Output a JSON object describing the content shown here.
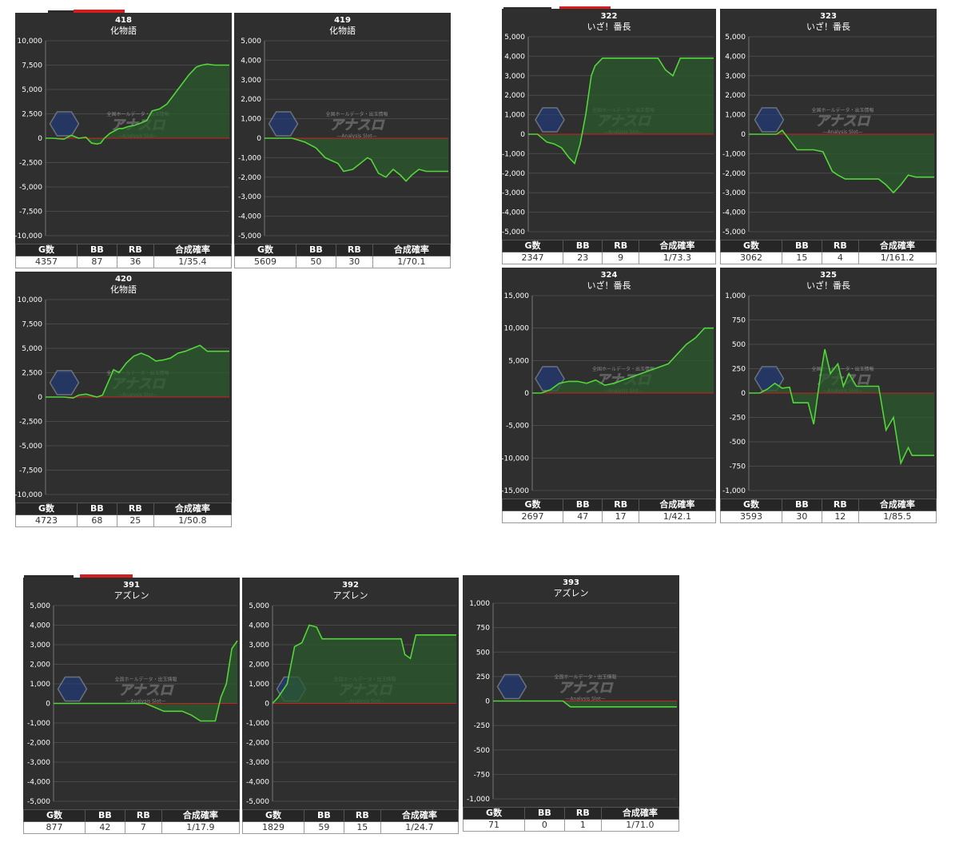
{
  "table_headers": {
    "g": "G数",
    "bb": "BB",
    "rb": "RB",
    "prob": "合成確率"
  },
  "colors": {
    "panel": "#2f2f2f",
    "line": "#53d63a",
    "fill": "#2b5a2d",
    "zero_line": "#d21e1e",
    "grid": "#4a4a4a"
  },
  "watermark": {
    "title": "アナスロ",
    "subtitle": "—Analysis Slot—",
    "tagline": "全国ホールデータ・出玉情報",
    "icon": "hexagon-logo-icon"
  },
  "chart_data": [
    {
      "type": "area",
      "number": "418",
      "title": "化物語",
      "ylim": [
        -10000,
        10000
      ],
      "yticks": [
        "10,000",
        "7,500",
        "5,000",
        "2,500",
        "0",
        "-2,500",
        "-5,000",
        "-7,500",
        "-10,000"
      ],
      "x": [
        0,
        4,
        10,
        14,
        18,
        22,
        25,
        28,
        30,
        32,
        35,
        40,
        42,
        45,
        48,
        51,
        55,
        58,
        62,
        66,
        70,
        74,
        78,
        82,
        85,
        88,
        92,
        96,
        100
      ],
      "y": [
        0,
        0,
        -100,
        300,
        0,
        100,
        -500,
        -600,
        -500,
        0,
        500,
        1000,
        1000,
        1200,
        1300,
        1500,
        1800,
        2800,
        3000,
        3500,
        4500,
        5500,
        6500,
        7300,
        7500,
        7600,
        7500,
        7500,
        7500
      ],
      "stats": {
        "g": "4357",
        "bb": "87",
        "rb": "36",
        "prob": "1/35.4"
      }
    },
    {
      "type": "area",
      "number": "419",
      "title": "化物語",
      "ylim": [
        -5000,
        5000
      ],
      "yticks": [
        "5,000",
        "4,000",
        "3,000",
        "2,000",
        "1,000",
        "0",
        "-1,000",
        "-2,000",
        "-3,000",
        "-4,000",
        "-5,000"
      ],
      "x": [
        0,
        15,
        22,
        28,
        33,
        40,
        43,
        48,
        52,
        56,
        58,
        62,
        66,
        70,
        74,
        77,
        80,
        84,
        88,
        92,
        96,
        100
      ],
      "y": [
        0,
        0,
        -200,
        -500,
        -1000,
        -1300,
        -1700,
        -1600,
        -1300,
        -1000,
        -1100,
        -1800,
        -2000,
        -1600,
        -1900,
        -2200,
        -1900,
        -1600,
        -1700,
        -1700,
        -1700,
        -1700
      ],
      "stats": {
        "g": "5609",
        "bb": "50",
        "rb": "30",
        "prob": "1/70.1"
      }
    },
    {
      "type": "area",
      "number": "420",
      "title": "化物語",
      "ylim": [
        -10000,
        10000
      ],
      "yticks": [
        "10,000",
        "7,500",
        "5,000",
        "2,500",
        "0",
        "-2,500",
        "-5,000",
        "-7,500",
        "-10,000"
      ],
      "x": [
        0,
        10,
        15,
        18,
        22,
        28,
        31,
        34,
        37,
        40,
        44,
        48,
        52,
        56,
        60,
        64,
        68,
        72,
        76,
        80,
        84,
        88,
        92,
        96,
        100
      ],
      "y": [
        0,
        0,
        -100,
        200,
        300,
        0,
        200,
        1500,
        2800,
        2500,
        3500,
        4200,
        4500,
        4200,
        3700,
        3800,
        4000,
        4500,
        4700,
        5000,
        5300,
        4700,
        4700,
        4700,
        4700
      ],
      "stats": {
        "g": "4723",
        "bb": "68",
        "rb": "25",
        "prob": "1/50.8"
      }
    },
    {
      "type": "area",
      "number": "322",
      "title": "いざ！番長",
      "ylim": [
        -5000,
        5000
      ],
      "yticks": [
        "5,000",
        "4,000",
        "3,000",
        "2,000",
        "1,000",
        "0",
        "-1,000",
        "-2,000",
        "-3,000",
        "-4,000",
        "-5,000"
      ],
      "x": [
        0,
        5,
        10,
        14,
        18,
        22,
        25,
        28,
        31,
        34,
        36,
        40,
        45,
        55,
        65,
        70,
        74,
        78,
        82,
        100
      ],
      "y": [
        0,
        0,
        -400,
        -500,
        -700,
        -1200,
        -1500,
        -500,
        1000,
        3000,
        3500,
        3900,
        3900,
        3900,
        3900,
        3900,
        3300,
        3000,
        3900,
        3900
      ],
      "stats": {
        "g": "2347",
        "bb": "23",
        "rb": "9",
        "prob": "1/73.3"
      }
    },
    {
      "type": "area",
      "number": "323",
      "title": "いざ！番長",
      "ylim": [
        -5000,
        5000
      ],
      "yticks": [
        "5,000",
        "4,000",
        "3,000",
        "2,000",
        "1,000",
        "0",
        "-1,000",
        "-2,000",
        "-3,000",
        "-4,000",
        "-5,000"
      ],
      "x": [
        0,
        15,
        18,
        22,
        26,
        30,
        35,
        40,
        45,
        48,
        52,
        56,
        60,
        65,
        70,
        74,
        78,
        82,
        86,
        90,
        94,
        100
      ],
      "y": [
        0,
        0,
        200,
        -300,
        -800,
        -800,
        -800,
        -900,
        -1900,
        -2100,
        -2300,
        -2300,
        -2300,
        -2300,
        -2300,
        -2600,
        -3000,
        -2600,
        -2100,
        -2200,
        -2200,
        -2200
      ],
      "stats": {
        "g": "3062",
        "bb": "15",
        "rb": "4",
        "prob": "1/161.2"
      }
    },
    {
      "type": "area",
      "number": "324",
      "title": "いざ！番長",
      "ylim": [
        -15000,
        15000
      ],
      "yticks": [
        "15,000",
        "10,000",
        "5,000",
        "0",
        "-5,000",
        "-10,000",
        "-15,000"
      ],
      "x": [
        0,
        5,
        10,
        15,
        20,
        25,
        30,
        35,
        40,
        45,
        50,
        55,
        60,
        65,
        70,
        75,
        80,
        85,
        90,
        95,
        100
      ],
      "y": [
        0,
        0,
        500,
        1500,
        1800,
        1800,
        1500,
        2000,
        1200,
        1500,
        2000,
        2500,
        3000,
        3500,
        4000,
        4500,
        6000,
        7500,
        8500,
        10000,
        10000
      ],
      "stats": {
        "g": "2697",
        "bb": "47",
        "rb": "17",
        "prob": "1/42.1"
      }
    },
    {
      "type": "area",
      "number": "325",
      "title": "いざ！番長",
      "ylim": [
        -1000,
        1000
      ],
      "yticks": [
        "1,000",
        "750",
        "500",
        "250",
        "0",
        "-250",
        "-500",
        "-750",
        "-1,000"
      ],
      "x": [
        0,
        6,
        10,
        14,
        18,
        22,
        24,
        28,
        32,
        35,
        38,
        41,
        44,
        48,
        51,
        54,
        58,
        62,
        66,
        70,
        74,
        78,
        82,
        86,
        88,
        90,
        92,
        94,
        96,
        100
      ],
      "y": [
        0,
        0,
        40,
        100,
        50,
        60,
        -100,
        -100,
        -100,
        -320,
        100,
        450,
        200,
        300,
        70,
        200,
        70,
        70,
        70,
        70,
        -380,
        -250,
        -720,
        -560,
        -640,
        -640,
        -640,
        -640,
        -640,
        -640
      ],
      "stats": {
        "g": "3593",
        "bb": "30",
        "rb": "12",
        "prob": "1/85.5"
      }
    },
    {
      "type": "area",
      "number": "391",
      "title": "アズレン",
      "ylim": [
        -5000,
        5000
      ],
      "yticks": [
        "5,000",
        "4,000",
        "3,000",
        "2,000",
        "1,000",
        "0",
        "-1,000",
        "-2,000",
        "-3,000",
        "-4,000",
        "-5,000"
      ],
      "x": [
        0,
        30,
        50,
        55,
        60,
        65,
        70,
        75,
        80,
        85,
        88,
        91,
        94,
        97,
        100
      ],
      "y": [
        0,
        0,
        0,
        -200,
        -400,
        -400,
        -400,
        -600,
        -900,
        -900,
        -900,
        300,
        1000,
        2800,
        3200
      ],
      "stats": {
        "g": "877",
        "bb": "42",
        "rb": "7",
        "prob": "1/17.9"
      }
    },
    {
      "type": "area",
      "number": "392",
      "title": "アズレン",
      "ylim": [
        -5000,
        5000
      ],
      "yticks": [
        "5,000",
        "4,000",
        "3,000",
        "2,000",
        "1,000",
        "0",
        "-1,000",
        "-2,000",
        "-3,000",
        "-4,000",
        "-5,000"
      ],
      "x": [
        0,
        3,
        8,
        12,
        16,
        20,
        24,
        27,
        30,
        35,
        40,
        45,
        50,
        55,
        60,
        65,
        70,
        72,
        75,
        78,
        82,
        86,
        90,
        95,
        100
      ],
      "y": [
        0,
        300,
        1000,
        2900,
        3100,
        4000,
        3900,
        3300,
        3300,
        3300,
        3300,
        3300,
        3300,
        3300,
        3300,
        3300,
        3300,
        2500,
        2300,
        3500,
        3500,
        3500,
        3500,
        3500,
        3500
      ],
      "stats": {
        "g": "1829",
        "bb": "59",
        "rb": "15",
        "prob": "1/24.7"
      }
    },
    {
      "type": "area",
      "number": "393",
      "title": "アズレン",
      "ylim": [
        -1000,
        1000
      ],
      "yticks": [
        "1,000",
        "750",
        "500",
        "250",
        "0",
        "-250",
        "-500",
        "-750",
        "-1,000"
      ],
      "x": [
        0,
        30,
        38,
        42,
        50,
        60,
        70,
        80,
        90,
        100
      ],
      "y": [
        0,
        0,
        0,
        -60,
        -60,
        -60,
        -60,
        -60,
        -60,
        -60
      ],
      "stats": {
        "g": "71",
        "bb": "0",
        "rb": "1",
        "prob": "1/71.0"
      }
    }
  ]
}
